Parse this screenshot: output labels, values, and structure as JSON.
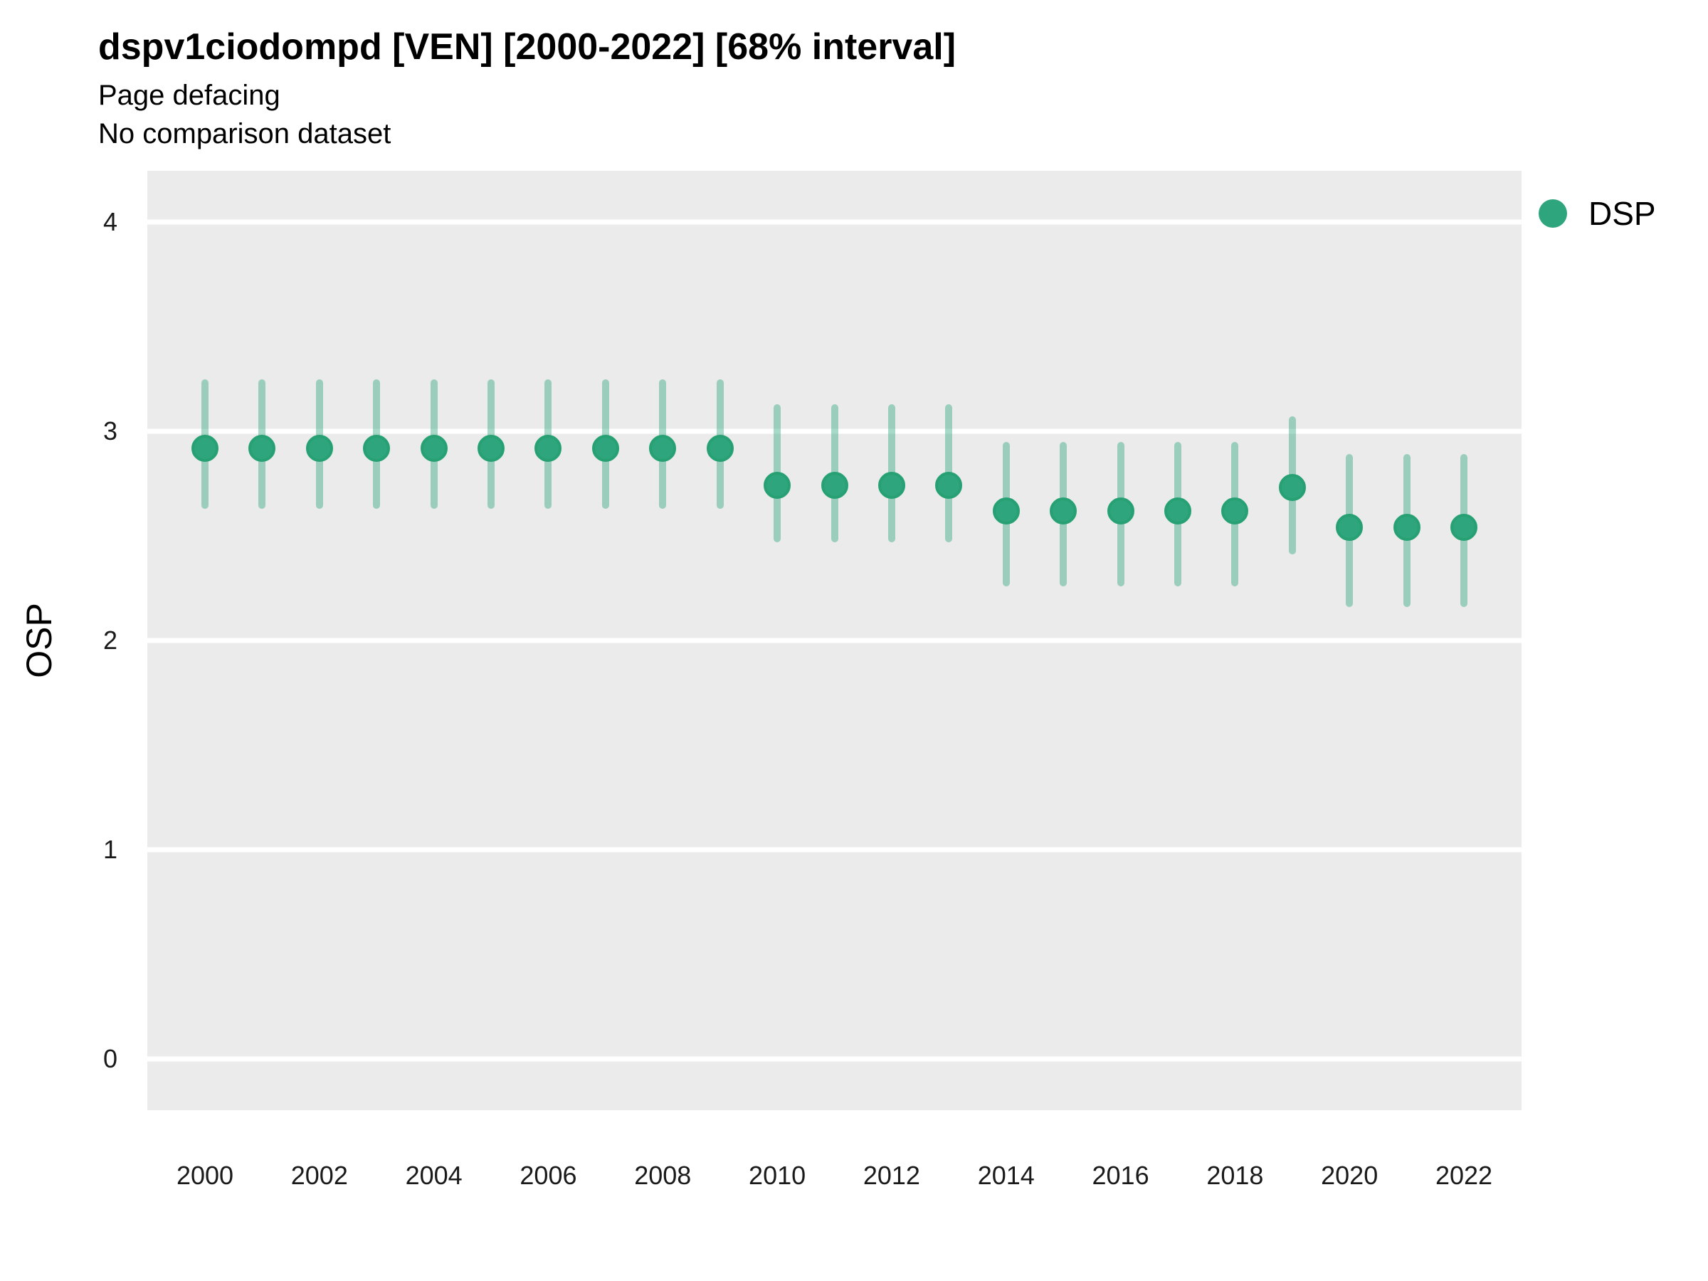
{
  "header": {
    "title": "dspv1ciodompd [VEN] [2000-2022] [68% interval]",
    "subtitle": "Page defacing",
    "comparison_note": "No comparison dataset"
  },
  "legend": {
    "position": "right",
    "items": [
      {
        "label": "DSP",
        "color": "#2ea57c"
      }
    ]
  },
  "colors": {
    "panel_background": "#ebebeb",
    "gridline": "#ffffff",
    "point_fill": "#2ea57c",
    "point_stroke": "#27a174",
    "interval_bar": "rgba(46,165,124,0.42)",
    "text": "#000000"
  },
  "chart_data": {
    "type": "scatter",
    "title": "dspv1ciodompd [VEN] [2000-2022] [68% interval]",
    "subtitle": "Page defacing",
    "note": "No comparison dataset",
    "xlabel": "",
    "ylabel": "OSP",
    "interval_level": "68%",
    "x_ticks": [
      2000,
      2002,
      2004,
      2006,
      2008,
      2010,
      2012,
      2014,
      2016,
      2018,
      2020,
      2022
    ],
    "y_ticks": [
      0,
      1,
      2,
      3,
      4
    ],
    "ylim": [
      -0.25,
      4.25
    ],
    "xlim": [
      1999,
      2023
    ],
    "grid": "horizontal-major-only",
    "legend_position": "right",
    "series": [
      {
        "name": "DSP",
        "points": [
          {
            "year": 2000,
            "value": 2.92,
            "lo": 2.63,
            "hi": 3.25
          },
          {
            "year": 2001,
            "value": 2.92,
            "lo": 2.63,
            "hi": 3.25
          },
          {
            "year": 2002,
            "value": 2.92,
            "lo": 2.63,
            "hi": 3.25
          },
          {
            "year": 2003,
            "value": 2.92,
            "lo": 2.63,
            "hi": 3.25
          },
          {
            "year": 2004,
            "value": 2.92,
            "lo": 2.63,
            "hi": 3.25
          },
          {
            "year": 2005,
            "value": 2.92,
            "lo": 2.63,
            "hi": 3.25
          },
          {
            "year": 2006,
            "value": 2.92,
            "lo": 2.63,
            "hi": 3.25
          },
          {
            "year": 2007,
            "value": 2.92,
            "lo": 2.63,
            "hi": 3.25
          },
          {
            "year": 2008,
            "value": 2.92,
            "lo": 2.63,
            "hi": 3.25
          },
          {
            "year": 2009,
            "value": 2.92,
            "lo": 2.63,
            "hi": 3.25
          },
          {
            "year": 2010,
            "value": 2.74,
            "lo": 2.47,
            "hi": 3.13
          },
          {
            "year": 2011,
            "value": 2.74,
            "lo": 2.47,
            "hi": 3.13
          },
          {
            "year": 2012,
            "value": 2.74,
            "lo": 2.47,
            "hi": 3.13
          },
          {
            "year": 2013,
            "value": 2.74,
            "lo": 2.47,
            "hi": 3.13
          },
          {
            "year": 2014,
            "value": 2.62,
            "lo": 2.26,
            "hi": 2.95
          },
          {
            "year": 2015,
            "value": 2.62,
            "lo": 2.26,
            "hi": 2.95
          },
          {
            "year": 2016,
            "value": 2.62,
            "lo": 2.26,
            "hi": 2.95
          },
          {
            "year": 2017,
            "value": 2.62,
            "lo": 2.26,
            "hi": 2.95
          },
          {
            "year": 2018,
            "value": 2.62,
            "lo": 2.26,
            "hi": 2.95
          },
          {
            "year": 2019,
            "value": 2.73,
            "lo": 2.41,
            "hi": 3.07
          },
          {
            "year": 2020,
            "value": 2.54,
            "lo": 2.16,
            "hi": 2.89
          },
          {
            "year": 2021,
            "value": 2.54,
            "lo": 2.16,
            "hi": 2.89
          },
          {
            "year": 2022,
            "value": 2.54,
            "lo": 2.16,
            "hi": 2.89
          }
        ]
      }
    ]
  }
}
